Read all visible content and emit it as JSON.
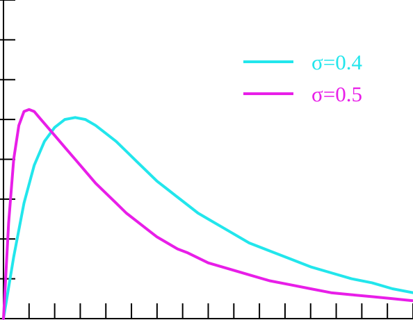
{
  "chart_data": {
    "type": "line",
    "title": "",
    "xlabel": "",
    "ylabel": "",
    "xlim": [
      0,
      4.0
    ],
    "ylim": [
      0,
      1.6
    ],
    "grid": false,
    "legend_position": "top-right",
    "x_ticks": [
      0.25,
      0.5,
      0.75,
      1.0,
      1.25,
      1.5,
      1.75,
      2.0,
      2.25,
      2.5,
      2.75,
      3.0,
      3.25,
      3.5,
      3.75,
      4.0
    ],
    "y_ticks": [
      0.2,
      0.4,
      0.6,
      0.8,
      1.0,
      1.2,
      1.4,
      1.6
    ],
    "series": [
      {
        "name": "σ=0.4",
        "color": "#22e6ec",
        "x": [
          0,
          0.1,
          0.2,
          0.3,
          0.4,
          0.5,
          0.6,
          0.7,
          0.8,
          0.9,
          1.0,
          1.1,
          1.2,
          1.3,
          1.4,
          1.5,
          1.6,
          1.7,
          1.8,
          1.9,
          2.0,
          2.2,
          2.4,
          2.6,
          2.8,
          3.0,
          3.2,
          3.4,
          3.6,
          3.8,
          4.0
        ],
        "y": [
          0,
          0.31,
          0.58,
          0.77,
          0.89,
          0.96,
          1.0,
          1.01,
          1.0,
          0.97,
          0.93,
          0.89,
          0.84,
          0.79,
          0.74,
          0.69,
          0.65,
          0.61,
          0.57,
          0.53,
          0.5,
          0.44,
          0.38,
          0.34,
          0.3,
          0.26,
          0.23,
          0.2,
          0.18,
          0.15,
          0.13
        ]
      },
      {
        "name": "σ=0.5",
        "color": "#e81ee8",
        "x": [
          0,
          0.05,
          0.1,
          0.15,
          0.2,
          0.25,
          0.3,
          0.35,
          0.4,
          0.5,
          0.6,
          0.7,
          0.8,
          0.9,
          1.0,
          1.1,
          1.2,
          1.3,
          1.4,
          1.5,
          1.6,
          1.7,
          1.8,
          2.0,
          2.2,
          2.4,
          2.6,
          2.8,
          3.0,
          3.2,
          3.4,
          3.6,
          3.8,
          4.0
        ],
        "y": [
          0,
          0.48,
          0.8,
          0.97,
          1.04,
          1.05,
          1.04,
          1.01,
          0.98,
          0.92,
          0.86,
          0.8,
          0.74,
          0.68,
          0.63,
          0.58,
          0.53,
          0.49,
          0.45,
          0.41,
          0.38,
          0.35,
          0.33,
          0.28,
          0.25,
          0.22,
          0.19,
          0.17,
          0.15,
          0.13,
          0.12,
          0.11,
          0.1,
          0.09
        ]
      }
    ]
  }
}
